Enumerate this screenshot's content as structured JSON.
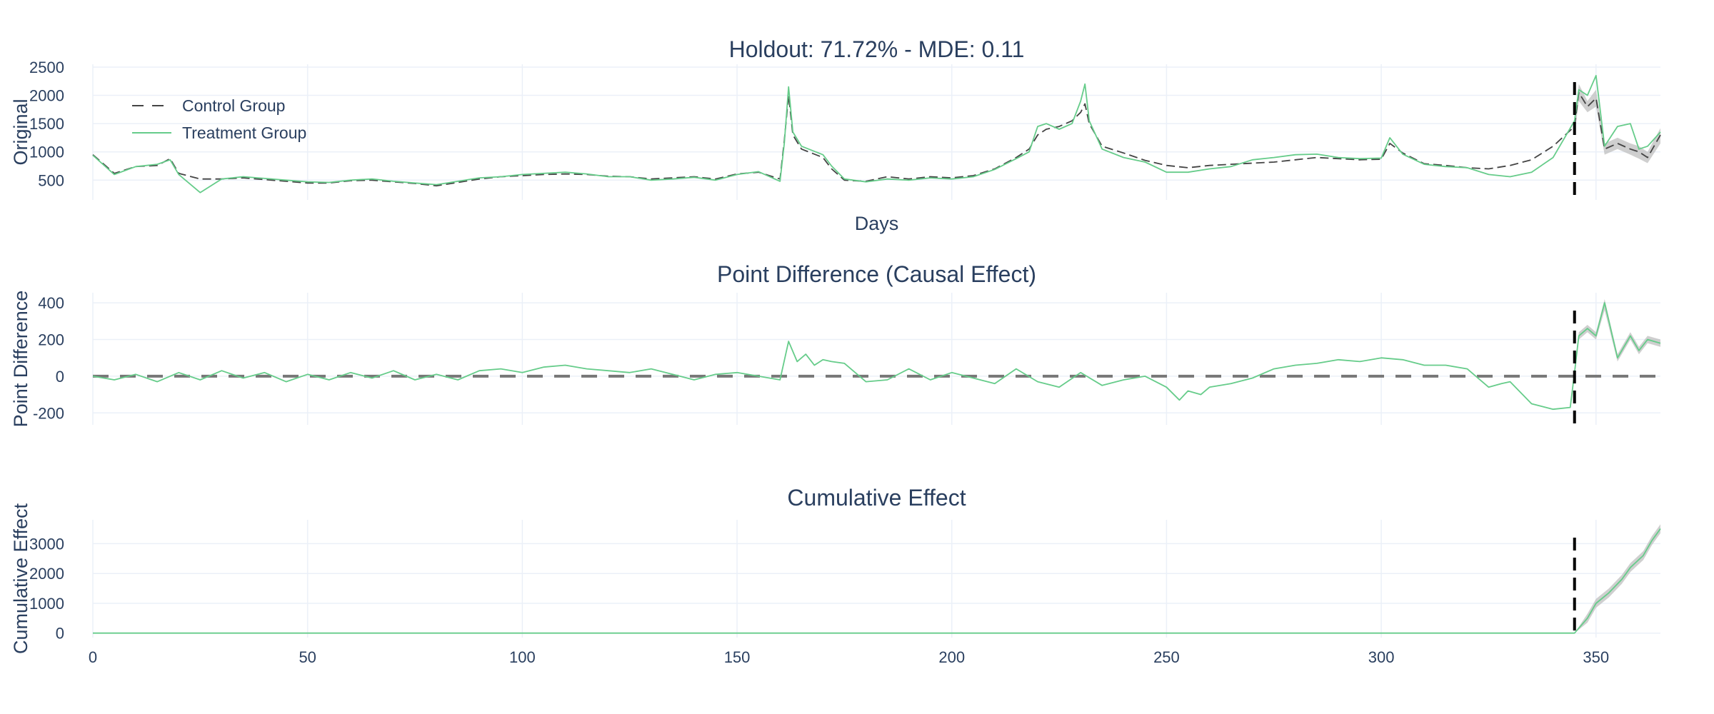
{
  "colors": {
    "control": "#444444",
    "treatment": "#66cc8a",
    "band": "#bbbbbb",
    "zero_line": "#777777",
    "intervention": "#000000",
    "grid": "#ebf0f8",
    "text": "#2a3f5f"
  },
  "chart_data": [
    {
      "type": "line",
      "title": "Holdout: 71.72% - MDE: 0.11",
      "xlabel": "Days",
      "ylabel": "Original",
      "xlim": [
        0,
        365
      ],
      "ylim": [
        150,
        2550
      ],
      "yticks": [
        500,
        1000,
        1500,
        2000,
        2500
      ],
      "grid": true,
      "legend_position": "top-left",
      "intervention_x": 345,
      "series": [
        {
          "name": "Control Group",
          "dash": "dash",
          "x": [
            0,
            5,
            10,
            15,
            18,
            20,
            25,
            30,
            35,
            40,
            45,
            50,
            55,
            60,
            65,
            70,
            75,
            80,
            85,
            90,
            95,
            100,
            105,
            110,
            115,
            120,
            125,
            130,
            135,
            140,
            145,
            150,
            155,
            160,
            161,
            162,
            163,
            165,
            170,
            172,
            175,
            180,
            185,
            190,
            195,
            200,
            205,
            210,
            215,
            218,
            220,
            222,
            225,
            228,
            230,
            231,
            232,
            235,
            240,
            245,
            250,
            255,
            260,
            265,
            270,
            275,
            280,
            285,
            290,
            295,
            300,
            302,
            305,
            310,
            315,
            320,
            325,
            330,
            335,
            340,
            345,
            346,
            348,
            350,
            352,
            355,
            358,
            360,
            362,
            365
          ],
          "y": [
            950,
            620,
            740,
            760,
            880,
            620,
            520,
            520,
            540,
            510,
            480,
            450,
            450,
            490,
            500,
            470,
            440,
            400,
            460,
            520,
            560,
            580,
            600,
            610,
            600,
            570,
            560,
            520,
            540,
            560,
            520,
            610,
            640,
            520,
            1200,
            2000,
            1300,
            1050,
            900,
            700,
            500,
            480,
            560,
            520,
            560,
            540,
            580,
            700,
            900,
            1050,
            1300,
            1400,
            1450,
            1550,
            1700,
            1850,
            1500,
            1100,
            980,
            850,
            760,
            720,
            760,
            780,
            800,
            820,
            860,
            900,
            880,
            860,
            870,
            1150,
            980,
            790,
            760,
            720,
            700,
            760,
            860,
            1100,
            1450,
            2050,
            1800,
            1950,
            1050,
            1150,
            1050,
            1000,
            900,
            1300
          ]
        },
        {
          "name": "Treatment Group",
          "dash": "solid",
          "x": [
            0,
            5,
            10,
            15,
            18,
            20,
            25,
            30,
            35,
            40,
            45,
            50,
            55,
            60,
            65,
            70,
            75,
            80,
            85,
            90,
            95,
            100,
            105,
            110,
            115,
            120,
            125,
            130,
            135,
            140,
            145,
            150,
            155,
            160,
            161,
            162,
            163,
            165,
            170,
            172,
            175,
            180,
            185,
            190,
            195,
            200,
            205,
            210,
            215,
            218,
            220,
            222,
            225,
            228,
            230,
            231,
            232,
            235,
            240,
            245,
            250,
            255,
            260,
            265,
            270,
            275,
            280,
            285,
            290,
            295,
            300,
            302,
            305,
            310,
            315,
            320,
            325,
            330,
            335,
            340,
            345,
            346,
            348,
            350,
            352,
            355,
            358,
            360,
            362,
            365
          ],
          "y": [
            940,
            600,
            740,
            780,
            860,
            600,
            280,
            520,
            560,
            530,
            500,
            470,
            460,
            500,
            520,
            480,
            450,
            420,
            480,
            540,
            560,
            600,
            620,
            640,
            610,
            560,
            560,
            500,
            520,
            550,
            500,
            600,
            650,
            480,
            1150,
            2150,
            1350,
            1100,
            950,
            750,
            520,
            470,
            520,
            500,
            540,
            520,
            560,
            690,
            880,
            1000,
            1450,
            1500,
            1400,
            1500,
            1900,
            2200,
            1550,
            1050,
            900,
            820,
            640,
            640,
            700,
            740,
            860,
            900,
            950,
            960,
            900,
            880,
            890,
            1250,
            960,
            780,
            740,
            720,
            600,
            560,
            640,
            900,
            1550,
            2100,
            2000,
            2350,
            1100,
            1450,
            1500,
            1050,
            1100,
            1350
          ]
        }
      ],
      "band": {
        "x": [
          345,
          346,
          348,
          350,
          352,
          355,
          358,
          360,
          362,
          365
        ],
        "lower": [
          1300,
          1900,
          1700,
          1800,
          950,
          1050,
          950,
          880,
          800,
          1150
        ],
        "upper": [
          1600,
          2200,
          1900,
          2100,
          1150,
          1250,
          1150,
          1100,
          1000,
          1420
        ]
      }
    },
    {
      "type": "line",
      "title": "Point Difference (Causal Effect)",
      "xlabel": "",
      "ylabel": "Point Difference",
      "xlim": [
        0,
        365
      ],
      "ylim": [
        -265,
        455
      ],
      "yticks": [
        -200,
        0,
        200,
        400
      ],
      "grid": true,
      "intervention_x": 345,
      "zero_line": 0,
      "series": [
        {
          "name": "",
          "x": [
            0,
            5,
            10,
            15,
            20,
            25,
            30,
            35,
            40,
            45,
            50,
            55,
            60,
            65,
            70,
            75,
            80,
            85,
            90,
            95,
            100,
            105,
            110,
            115,
            120,
            125,
            130,
            135,
            140,
            145,
            150,
            155,
            160,
            162,
            164,
            166,
            168,
            170,
            172,
            175,
            180,
            185,
            190,
            195,
            200,
            205,
            210,
            215,
            220,
            225,
            230,
            235,
            240,
            245,
            250,
            253,
            255,
            258,
            260,
            265,
            270,
            275,
            280,
            285,
            290,
            295,
            300,
            305,
            310,
            315,
            320,
            325,
            328,
            330,
            335,
            340,
            344,
            345,
            346,
            348,
            350,
            352,
            355,
            358,
            360,
            362,
            365
          ],
          "y": [
            0,
            -20,
            10,
            -30,
            20,
            -20,
            30,
            -10,
            20,
            -30,
            10,
            -20,
            20,
            -10,
            30,
            -20,
            10,
            -20,
            30,
            40,
            20,
            50,
            60,
            40,
            30,
            20,
            40,
            10,
            -20,
            10,
            20,
            0,
            -20,
            190,
            80,
            120,
            60,
            90,
            80,
            70,
            -30,
            -20,
            40,
            -20,
            20,
            -10,
            -40,
            40,
            -30,
            -60,
            20,
            -50,
            -20,
            0,
            -60,
            -130,
            -80,
            -100,
            -60,
            -40,
            -10,
            40,
            60,
            70,
            90,
            80,
            100,
            90,
            60,
            60,
            40,
            -60,
            -40,
            -30,
            -150,
            -180,
            -170,
            20,
            220,
            260,
            220,
            400,
            100,
            220,
            140,
            200,
            180
          ]
        }
      ],
      "band": {
        "x": [
          345,
          346,
          348,
          350,
          352,
          355,
          358,
          360,
          362,
          365
        ],
        "lower": [
          0,
          200,
          240,
          200,
          360,
          80,
          200,
          120,
          180,
          160
        ],
        "upper": [
          40,
          240,
          280,
          240,
          420,
          120,
          240,
          160,
          220,
          200
        ]
      }
    },
    {
      "type": "line",
      "title": "Cumulative Effect",
      "xlabel": "",
      "ylabel": "Cumulative Effect",
      "xlim": [
        0,
        365
      ],
      "ylim": [
        -150,
        3800
      ],
      "yticks": [
        0,
        1000,
        2000,
        3000
      ],
      "xticks": [
        0,
        50,
        100,
        150,
        200,
        250,
        300,
        350
      ],
      "grid": true,
      "intervention_x": 345,
      "series": [
        {
          "name": "",
          "x": [
            0,
            50,
            100,
            150,
            200,
            250,
            300,
            345,
            348,
            350,
            353,
            356,
            358,
            361,
            363,
            365
          ],
          "y": [
            0,
            0,
            0,
            0,
            0,
            0,
            0,
            0,
            500,
            1000,
            1350,
            1800,
            2200,
            2600,
            3100,
            3500
          ]
        }
      ],
      "band": {
        "x": [
          345,
          348,
          350,
          353,
          356,
          358,
          361,
          363,
          365
        ],
        "lower": [
          0,
          350,
          850,
          1200,
          1650,
          2050,
          2450,
          2950,
          3350
        ],
        "upper": [
          0,
          650,
          1150,
          1500,
          1950,
          2350,
          2750,
          3250,
          3650
        ]
      }
    }
  ]
}
